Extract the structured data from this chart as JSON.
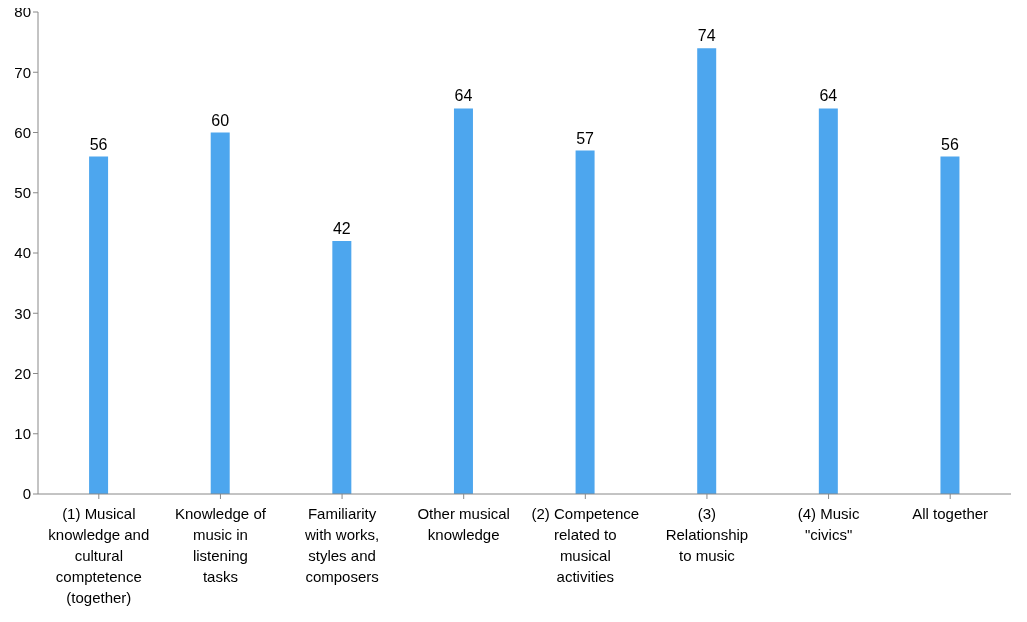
{
  "chart_data": {
    "type": "bar",
    "categories": [
      "(1) Musical knowledge and cultural comptetence (together)",
      "Knowledge of music in listening tasks",
      "Familiarity with works, styles and composers",
      "Other musical knowledge",
      "(2) Competence related to musical activities",
      "(3) Relationship to music",
      "(4) Music \"civics\"",
      "All together"
    ],
    "values": [
      56,
      60,
      42,
      64,
      57,
      74,
      64,
      56
    ],
    "color": "#4da6ee",
    "ylim": [
      0,
      80
    ],
    "yticks": [
      0,
      10,
      20,
      30,
      40,
      50,
      60,
      70,
      80
    ],
    "grid": false,
    "data_labels": true
  }
}
